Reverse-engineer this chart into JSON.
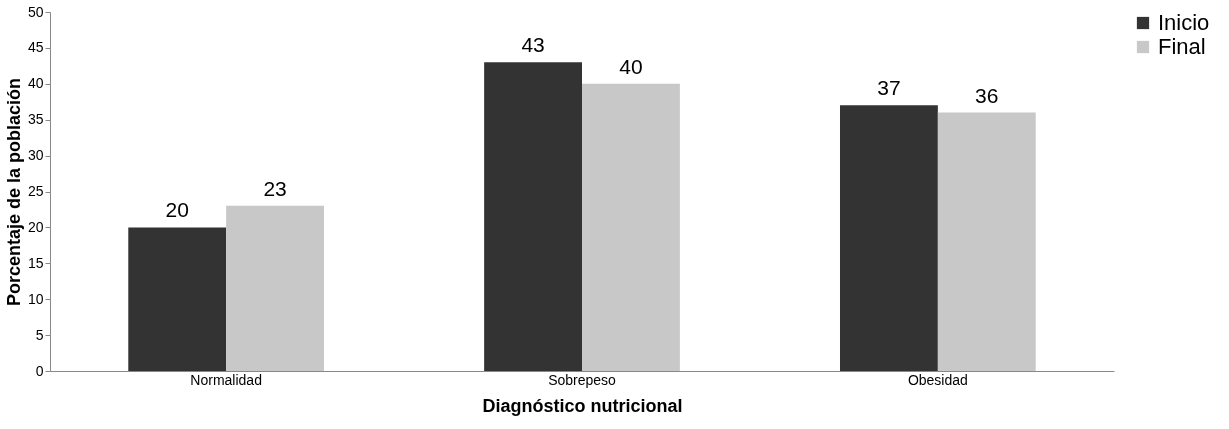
{
  "chart_data": {
    "type": "bar",
    "xlabel": "Diagnóstico nutricional",
    "ylabel": "Porcentaje de la población",
    "categories": [
      "Normalidad",
      "Sobrepeso",
      "Obesidad"
    ],
    "series": [
      {
        "name": "Inicio",
        "color": "#333333",
        "values": [
          20,
          43,
          37
        ]
      },
      {
        "name": "Final",
        "color": "#c8c8c8",
        "values": [
          23,
          40,
          36
        ]
      }
    ],
    "ylim": [
      0,
      50
    ],
    "yticks": [
      0,
      5,
      10,
      15,
      20,
      25,
      30,
      35,
      40,
      45,
      50
    ],
    "grid": false,
    "legend": "right",
    "data_labels": true
  }
}
